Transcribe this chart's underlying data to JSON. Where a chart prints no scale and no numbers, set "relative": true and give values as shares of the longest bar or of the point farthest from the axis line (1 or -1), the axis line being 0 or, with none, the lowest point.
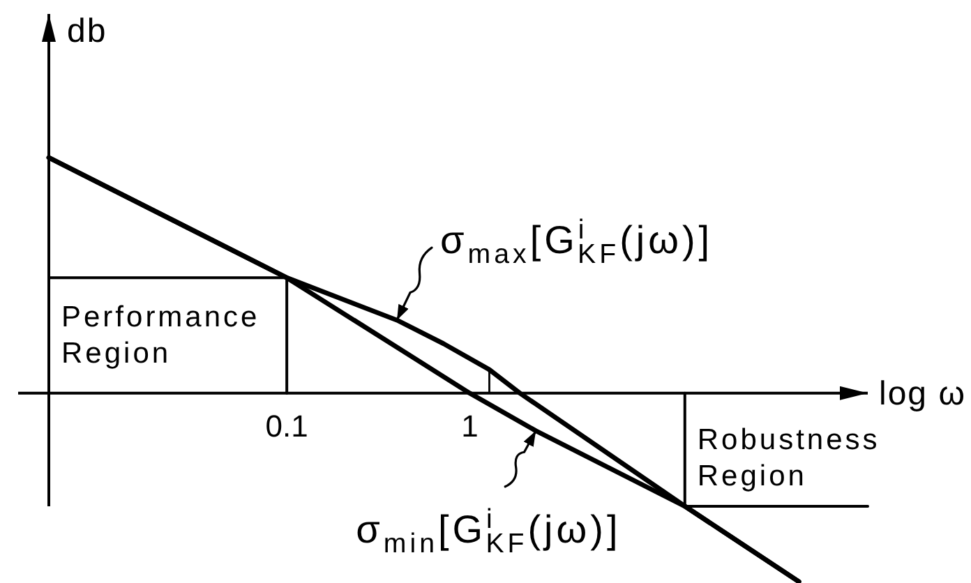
{
  "chart_data": {
    "type": "line",
    "xlabel": "log ω",
    "ylabel": "db",
    "log": "x",
    "relative": true,
    "xlim": [
      0.005,
      150
    ],
    "xticks": [
      0.1,
      1
    ],
    "series": [
      {
        "name": "σ$_{max}$[G$^{i}$$_{KF}$(jω)]",
        "color": "#000000",
        "x": [
          0.005,
          0.1,
          0.4,
          0.72,
          1.28,
          1.88,
          15,
          63
        ],
        "values": [
          1,
          0.49,
          0.31,
          0.21,
          0.1,
          0,
          -0.48,
          -0.8
        ]
      },
      {
        "name": "σ$_{min}$[G$^{i}$$_{KF}$(jω)]",
        "color": "#000000",
        "x": [
          0.005,
          0.1,
          1,
          2.3,
          15,
          63
        ],
        "values": [
          1,
          0.49,
          0,
          -0.16,
          -0.48,
          -0.8
        ]
      },
      {
        "color": "#000000",
        "x": [
          0.005,
          0.1,
          0.1
        ],
        "values": [
          0.49,
          0.49,
          0
        ]
      },
      {
        "color": "#000000",
        "x": [
          15,
          15,
          150
        ],
        "values": [
          0,
          -0.48,
          -0.48
        ]
      }
    ],
    "annotations": [
      "Performance Region",
      "Robustness Region"
    ]
  }
}
